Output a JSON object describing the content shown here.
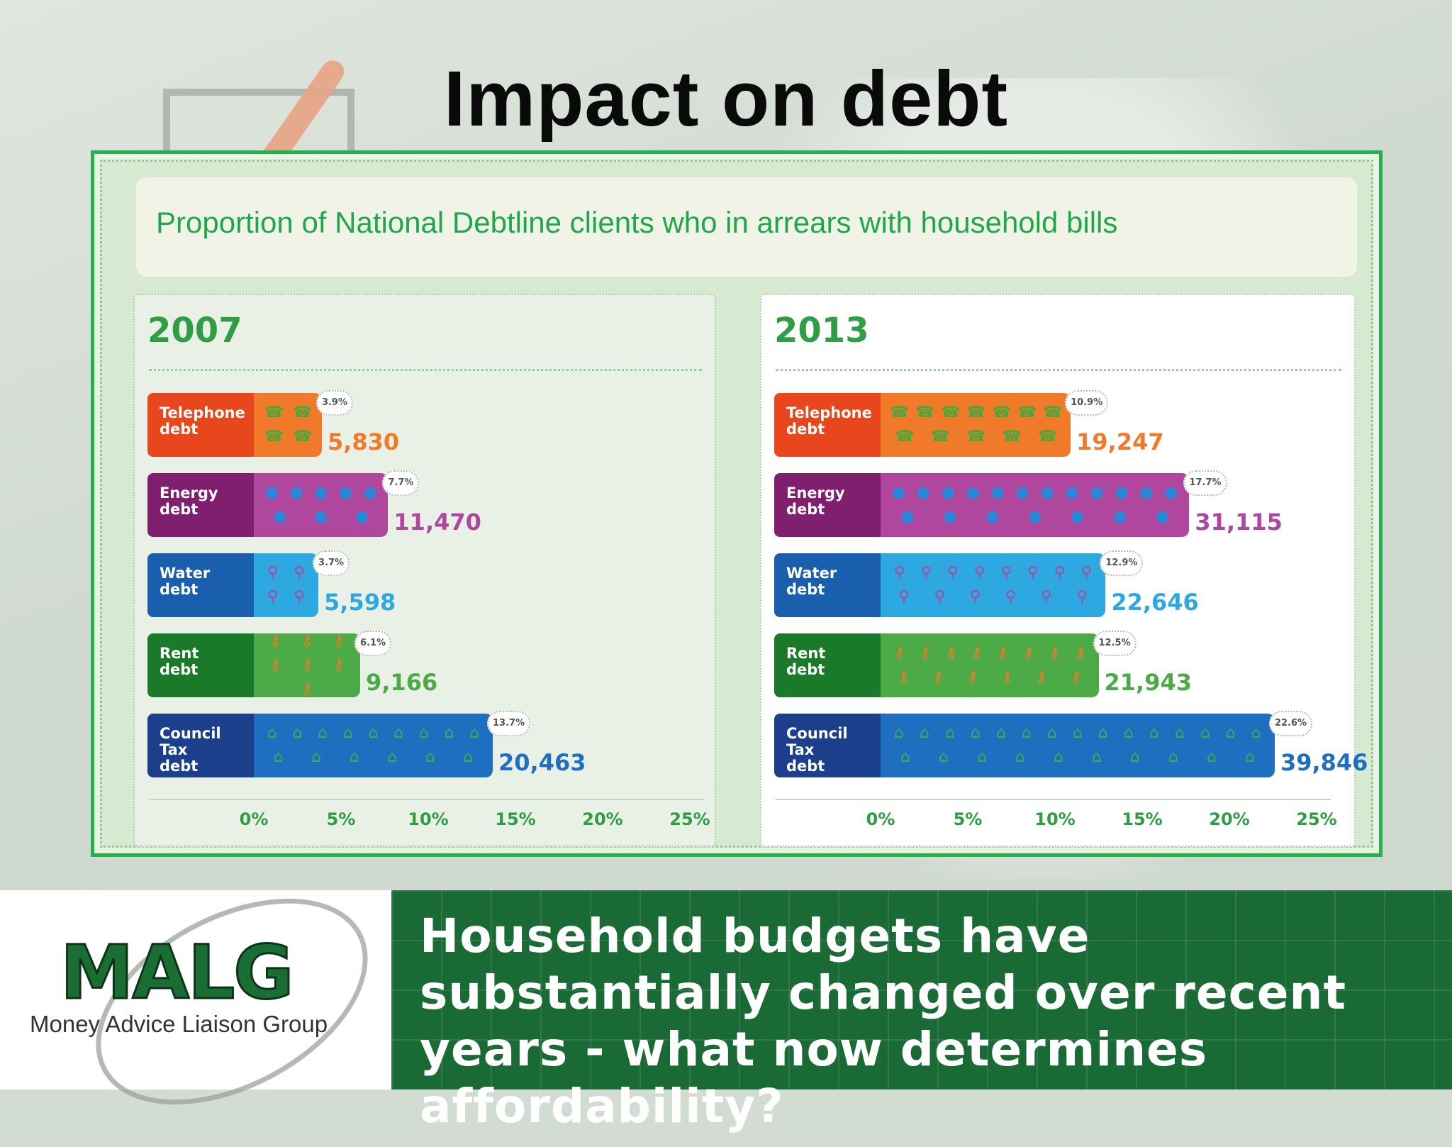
{
  "title": "Impact on debt",
  "subtitle": "Proportion of National Debtline clients who in arrears with household bills",
  "footer": {
    "logo_text": "MALG",
    "logo_sub": "Money Advice Liaison Group",
    "tagline": "Household budgets have substantially changed over recent years - what now determines affordability?"
  },
  "chart_data": [
    {
      "type": "bar",
      "orientation": "horizontal",
      "title": "2007",
      "xlim": [
        0,
        25
      ],
      "x_ticks": [
        "0%",
        "5%",
        "10%",
        "15%",
        "20%",
        "25%"
      ],
      "categories": [
        "Telephone debt",
        "Energy debt",
        "Water debt",
        "Rent debt",
        "Council Tax debt"
      ],
      "category_lines": [
        [
          "Telephone",
          "debt"
        ],
        [
          "Energy",
          "debt"
        ],
        [
          "Water",
          "debt"
        ],
        [
          "Rent",
          "debt"
        ],
        [
          "Council Tax",
          "debt"
        ]
      ],
      "values": [
        3.9,
        7.7,
        3.7,
        6.1,
        13.7
      ],
      "value_labels": [
        "3.9%",
        "7.7%",
        "3.7%",
        "6.1%",
        "13.7%"
      ],
      "counts": [
        "5,830",
        "11,470",
        "5,598",
        "9,166",
        "20,463"
      ]
    },
    {
      "type": "bar",
      "orientation": "horizontal",
      "title": "2013",
      "xlim": [
        0,
        25
      ],
      "x_ticks": [
        "0%",
        "5%",
        "10%",
        "15%",
        "20%",
        "25%"
      ],
      "categories": [
        "Telephone debt",
        "Energy debt",
        "Water debt",
        "Rent debt",
        "Council Tax debt"
      ],
      "category_lines": [
        [
          "Telephone",
          "debt"
        ],
        [
          "Energy",
          "debt"
        ],
        [
          "Water",
          "debt"
        ],
        [
          "Rent",
          "debt"
        ],
        [
          "Council Tax",
          "debt"
        ]
      ],
      "values": [
        10.9,
        17.7,
        12.9,
        12.5,
        22.6
      ],
      "value_labels": [
        "10.9%",
        "17.7%",
        "12.9%",
        "12.5%",
        "22.6%"
      ],
      "counts": [
        "19,247",
        "31,115",
        "22,646",
        "21,943",
        "39,846"
      ]
    }
  ],
  "styles": [
    {
      "label": "#e8461c",
      "fill": "#f07a2a",
      "text": "#f07a2a",
      "icon": "telephone-icon",
      "glyph": "☎",
      "icon_color": "#48a83a"
    },
    {
      "label": "#7f1f6e",
      "fill": "#b0479e",
      "text": "#b0479e",
      "icon": "flame-icon",
      "glyph": "●",
      "icon_color": "#2a86d6"
    },
    {
      "label": "#1a5fad",
      "fill": "#2ea8e0",
      "text": "#2ea8e0",
      "icon": "tap-icon",
      "glyph": "⚲",
      "icon_color": "#b0479e"
    },
    {
      "label": "#1a7a2a",
      "fill": "#4cab47",
      "text": "#4cab47",
      "icon": "key-icon",
      "glyph": "⚷",
      "icon_color": "#f07a2a"
    },
    {
      "label": "#1b3f8a",
      "fill": "#1f6fc1",
      "text": "#1f6fc1",
      "icon": "house-icon",
      "glyph": "⌂",
      "icon_color": "#4cab47"
    }
  ]
}
